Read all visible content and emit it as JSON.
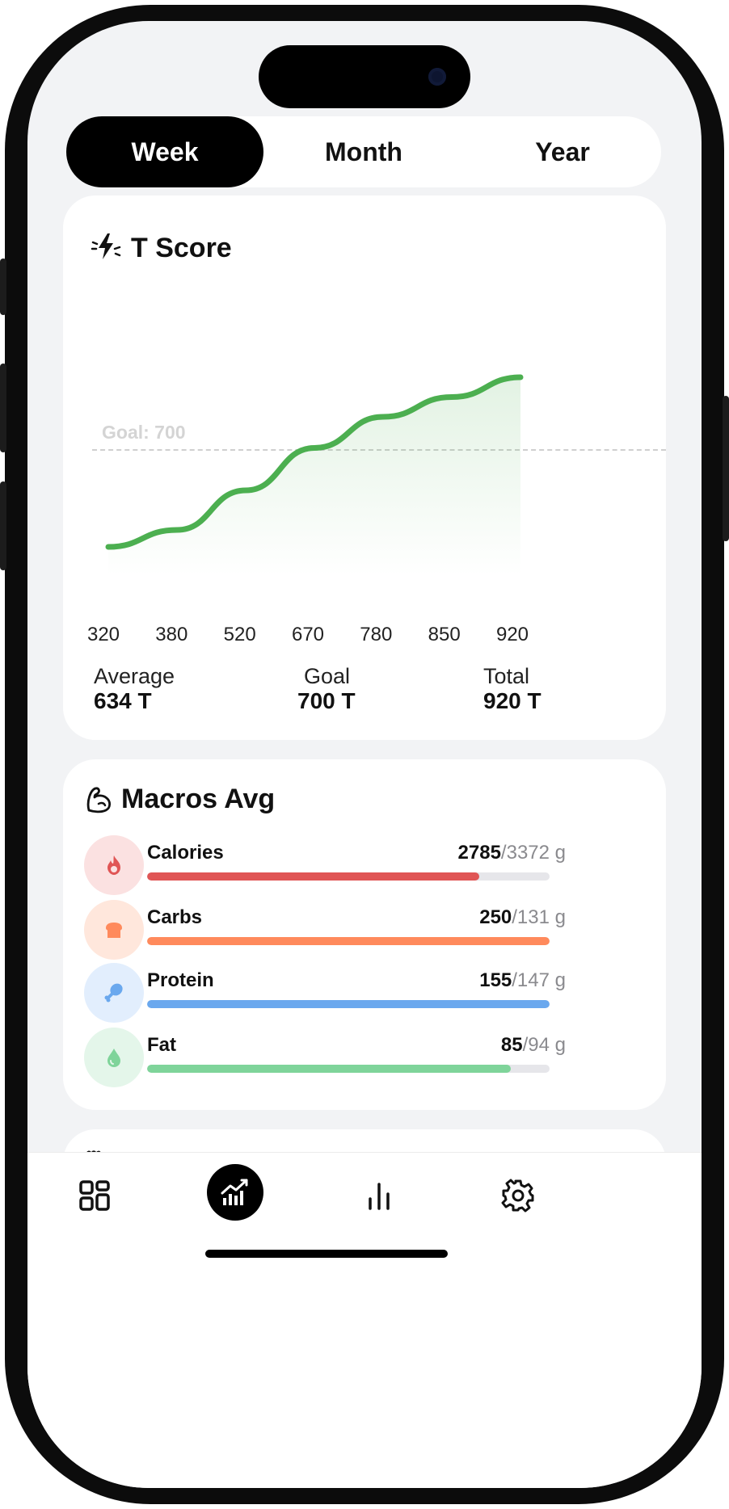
{
  "segments": {
    "week": "Week",
    "month": "Month",
    "year": "Year",
    "active": "Week"
  },
  "tscore": {
    "title": "T Score",
    "icon": "lightning-icon",
    "goal_label": "Goal: 700",
    "stats": [
      {
        "label": "Average",
        "value": "634 T"
      },
      {
        "label": "Goal",
        "value": "700 T"
      },
      {
        "label": "Total",
        "value": "920 T"
      }
    ]
  },
  "chart_data": {
    "type": "area",
    "x": [
      "320",
      "380",
      "520",
      "670",
      "780",
      "850",
      "920"
    ],
    "x_display": [
      "320",
      "380",
      "520",
      "670",
      "780",
      "850",
      "920"
    ],
    "values": [
      320,
      380,
      520,
      670,
      780,
      850,
      920
    ],
    "goal": 700,
    "color": "#4caf50"
  },
  "macros": {
    "title": "Macros Avg",
    "icon": "flexed-arm-icon",
    "unit": "g",
    "items": [
      {
        "name": "Calories",
        "value": "2785",
        "goal": "/3372 g",
        "progress": 0.826,
        "color": "#e05555",
        "bg": "#fbe1e1",
        "icon": "flame-icon"
      },
      {
        "name": "Carbs",
        "value": "250",
        "goal": "/131 g",
        "progress": 1.0,
        "color": "#ff8a5c",
        "bg": "#ffe7dc",
        "icon": "bread-icon"
      },
      {
        "name": "Protein",
        "value": "155",
        "goal": "/147 g",
        "progress": 1.0,
        "color": "#6aa8ee",
        "bg": "#e2eefd",
        "icon": "drumstick-icon"
      },
      {
        "name": "Fat",
        "value": "85",
        "goal": "/94 g",
        "progress": 0.904,
        "color": "#7fd49a",
        "bg": "#e4f6ea",
        "icon": "droplet-icon"
      }
    ]
  },
  "tabbar": {
    "items": [
      {
        "name": "dashboard",
        "icon": "grid-icon"
      },
      {
        "name": "progress",
        "icon": "chart-up-icon",
        "active": true
      },
      {
        "name": "stats",
        "icon": "bar-chart-icon"
      },
      {
        "name": "settings",
        "icon": "gear-icon"
      }
    ]
  }
}
